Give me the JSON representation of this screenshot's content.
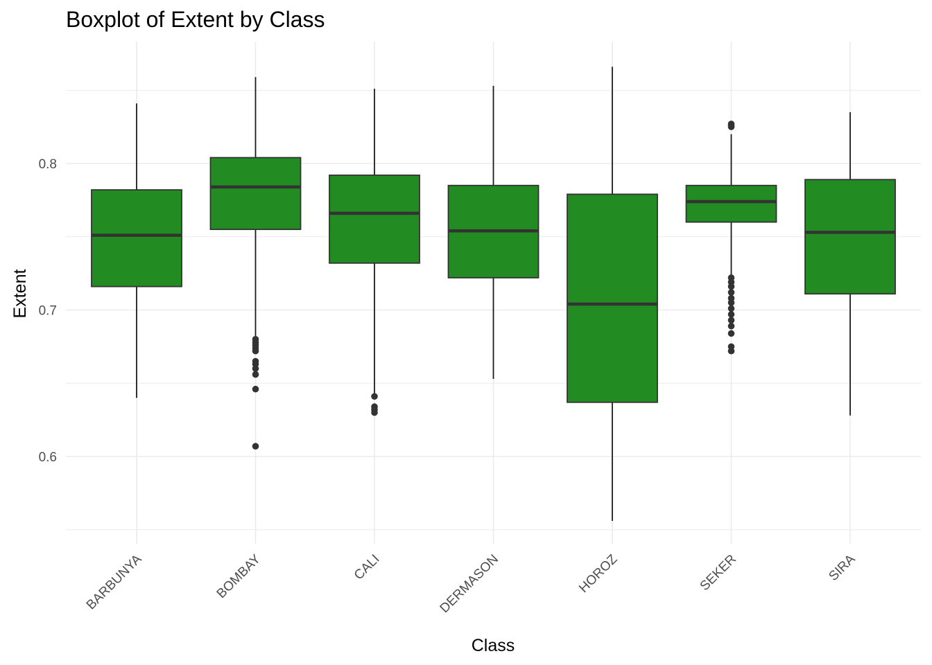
{
  "chart_data": {
    "type": "boxplot",
    "title": "Boxplot of Extent by Class",
    "xlabel": "Class",
    "ylabel": "Extent",
    "ylim": [
      0.55,
      0.87
    ],
    "y_ticks": [
      "0.6",
      "0.7",
      "0.8"
    ],
    "grid": true,
    "box_fill": "#228B22",
    "box_stroke": "#333333",
    "categories": [
      "BARBUNYA",
      "BOMBAY",
      "CALI",
      "DERMASON",
      "HOROZ",
      "SEKER",
      "SIRA"
    ],
    "boxes": [
      {
        "category": "BARBUNYA",
        "whisker_low": 0.64,
        "q1": 0.716,
        "median": 0.751,
        "q3": 0.782,
        "whisker_high": 0.841,
        "outliers": []
      },
      {
        "category": "BOMBAY",
        "whisker_low": 0.682,
        "q1": 0.755,
        "median": 0.784,
        "q3": 0.804,
        "whisker_high": 0.859,
        "outliers": [
          0.68,
          0.678,
          0.676,
          0.674,
          0.672,
          0.665,
          0.663,
          0.66,
          0.656,
          0.646,
          0.607
        ]
      },
      {
        "category": "CALI",
        "whisker_low": 0.642,
        "q1": 0.732,
        "median": 0.766,
        "q3": 0.792,
        "whisker_high": 0.851,
        "outliers": [
          0.641,
          0.634,
          0.632,
          0.63
        ]
      },
      {
        "category": "DERMASON",
        "whisker_low": 0.653,
        "q1": 0.722,
        "median": 0.754,
        "q3": 0.785,
        "whisker_high": 0.853,
        "outliers": []
      },
      {
        "category": "HOROZ",
        "whisker_low": 0.556,
        "q1": 0.637,
        "median": 0.704,
        "q3": 0.779,
        "whisker_high": 0.866,
        "outliers": []
      },
      {
        "category": "SEKER",
        "whisker_low": 0.724,
        "q1": 0.76,
        "median": 0.774,
        "q3": 0.785,
        "whisker_high": 0.82,
        "outliers": [
          0.827,
          0.826,
          0.825,
          0.722,
          0.719,
          0.716,
          0.712,
          0.708,
          0.705,
          0.701,
          0.697,
          0.693,
          0.689,
          0.684,
          0.675,
          0.672
        ]
      },
      {
        "category": "SIRA",
        "whisker_low": 0.628,
        "q1": 0.711,
        "median": 0.753,
        "q3": 0.789,
        "whisker_high": 0.835,
        "outliers": []
      }
    ]
  }
}
